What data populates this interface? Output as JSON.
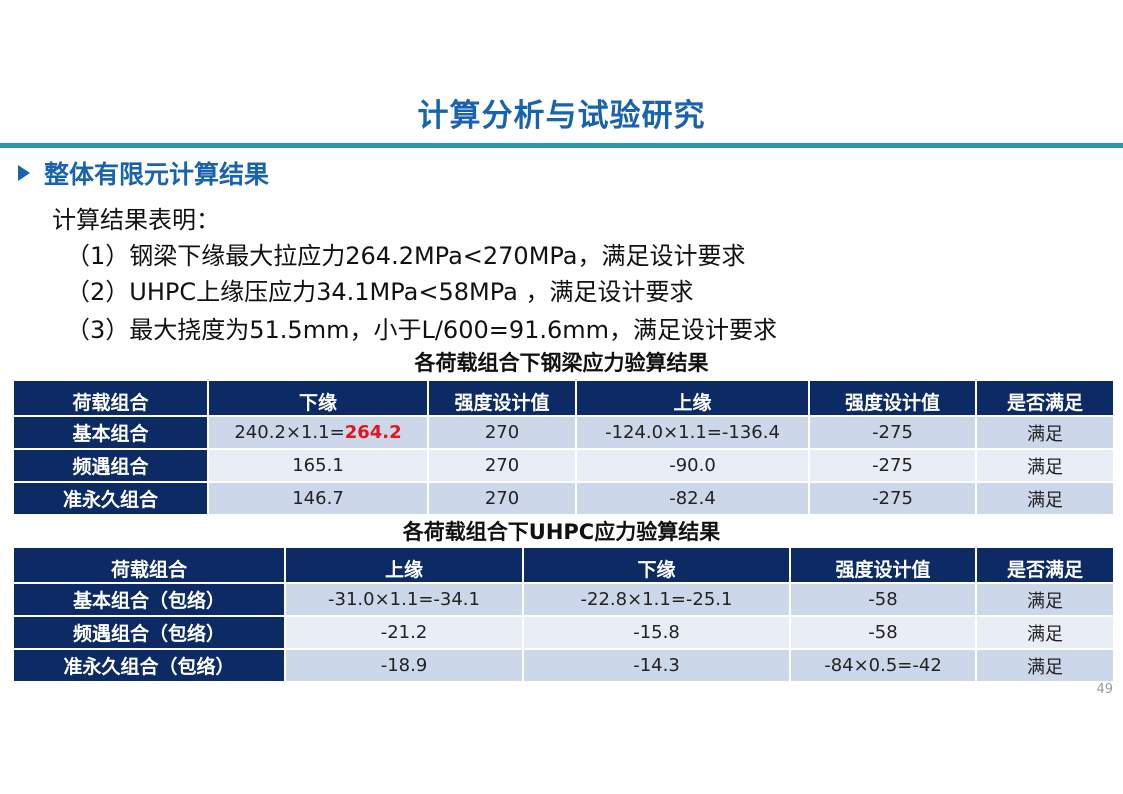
{
  "title": "计算分析与试验研究",
  "section": "整体有限元计算结果",
  "intro": "计算结果表明：",
  "results": [
    "（1）钢梁下缘最大拉应力264.2MPa<270MPa，满足设计要求",
    "（2）UHPC上缘压应力34.1MPa<58MPa ，满足设计要求",
    "（3）最大挠度为51.5mm，小于L/600=91.6mm，满足设计要求"
  ],
  "colors": {
    "title": "#1763b0",
    "rule": "#2e9aa6",
    "header_bg": "#0c2a63",
    "highlight": "#e0161b"
  },
  "table1": {
    "title": "各荷载组合下钢梁应力验算结果",
    "headers": [
      "荷载组合",
      "下缘",
      "强度设计值",
      "上缘",
      "强度设计值",
      "是否满足"
    ],
    "rows": [
      {
        "name": "基本组合",
        "lower_prefix": "240.2×1.1=",
        "lower_highlight": "264.2",
        "lower_design": "270",
        "upper": "-124.0×1.1=-136.4",
        "upper_design": "-275",
        "ok": "满足"
      },
      {
        "name": "频遇组合",
        "lower_prefix": "165.1",
        "lower_highlight": "",
        "lower_design": "270",
        "upper": "-90.0",
        "upper_design": "-275",
        "ok": "满足"
      },
      {
        "name": "准永久组合",
        "lower_prefix": "146.7",
        "lower_highlight": "",
        "lower_design": "270",
        "upper": "-82.4",
        "upper_design": "-275",
        "ok": "满足"
      }
    ]
  },
  "table2": {
    "title": "各荷载组合下UHPC应力验算结果",
    "headers": [
      "荷载组合",
      "上缘",
      "下缘",
      "强度设计值",
      "是否满足"
    ],
    "rows": [
      {
        "name": "基本组合（包络）",
        "upper": "-31.0×1.1=-34.1",
        "lower": "-22.8×1.1=-25.1",
        "design": "-58",
        "ok": "满足"
      },
      {
        "name": "频遇组合（包络）",
        "upper": "-21.2",
        "lower": "-15.8",
        "design": "-58",
        "ok": "满足"
      },
      {
        "name": "准永久组合（包络）",
        "upper": "-18.9",
        "lower": "-14.3",
        "design": "-84×0.5=-42",
        "ok": "满足"
      }
    ]
  },
  "page_number": "49"
}
